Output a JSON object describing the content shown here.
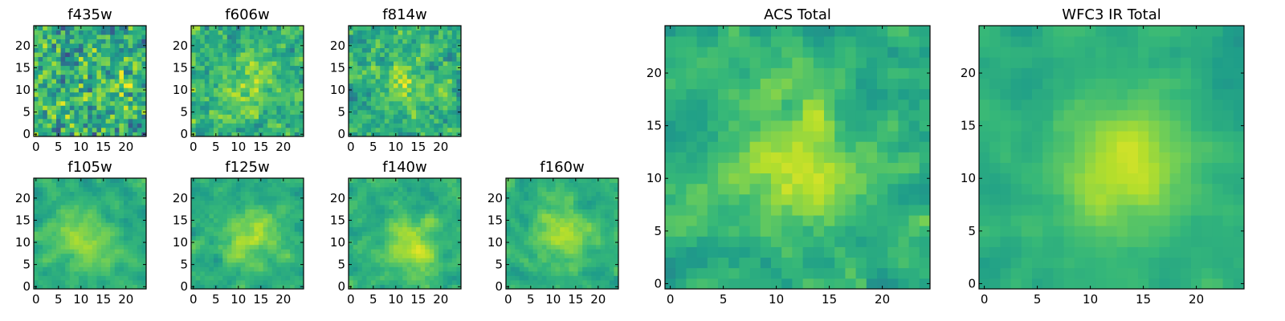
{
  "chart_data": [
    {
      "type": "heatmap",
      "title": "f435w",
      "x_ticks": [
        0,
        5,
        10,
        15,
        20
      ],
      "y_ticks": [
        0,
        5,
        10,
        15,
        20
      ],
      "xlim": [
        -0.5,
        24.5
      ],
      "ylim": [
        -0.5,
        24.5
      ],
      "grid_size": [
        25,
        25
      ],
      "colormap": "viridis",
      "value_range": [
        0,
        1
      ],
      "center": [
        12,
        11
      ],
      "center_peak": 0.1,
      "noise": 0.95
    },
    {
      "type": "heatmap",
      "title": "f606w",
      "x_ticks": [
        0,
        5,
        10,
        15,
        20
      ],
      "y_ticks": [
        0,
        5,
        10,
        15,
        20
      ],
      "xlim": [
        -0.5,
        24.5
      ],
      "ylim": [
        -0.5,
        24.5
      ],
      "grid_size": [
        25,
        25
      ],
      "colormap": "viridis",
      "value_range": [
        0,
        1
      ],
      "center": [
        13,
        11
      ],
      "center_peak": 0.3,
      "noise": 0.85
    },
    {
      "type": "heatmap",
      "title": "f814w",
      "x_ticks": [
        0,
        5,
        10,
        15,
        20
      ],
      "y_ticks": [
        0,
        5,
        10,
        15,
        20
      ],
      "xlim": [
        -0.5,
        24.5
      ],
      "ylim": [
        -0.5,
        24.5
      ],
      "grid_size": [
        25,
        25
      ],
      "colormap": "viridis",
      "value_range": [
        0,
        1
      ],
      "center": [
        12,
        11
      ],
      "center_peak": 0.35,
      "noise": 0.85
    },
    {
      "type": "heatmap",
      "title": "f105w",
      "x_ticks": [
        0,
        5,
        10,
        15,
        20
      ],
      "y_ticks": [
        0,
        5,
        10,
        15,
        20
      ],
      "xlim": [
        -0.5,
        24.5
      ],
      "ylim": [
        -0.5,
        24.5
      ],
      "grid_size": [
        25,
        25
      ],
      "colormap": "viridis",
      "value_range": [
        0,
        1
      ],
      "center": [
        11,
        11
      ],
      "center_peak": 0.45,
      "noise": 0.55
    },
    {
      "type": "heatmap",
      "title": "f125w",
      "x_ticks": [
        0,
        5,
        10,
        15,
        20
      ],
      "y_ticks": [
        0,
        5,
        10,
        15,
        20
      ],
      "xlim": [
        -0.5,
        24.5
      ],
      "ylim": [
        -0.5,
        24.5
      ],
      "grid_size": [
        25,
        25
      ],
      "colormap": "viridis",
      "value_range": [
        0,
        1
      ],
      "center": [
        13,
        11
      ],
      "center_peak": 0.4,
      "noise": 0.6
    },
    {
      "type": "heatmap",
      "title": "f140w",
      "x_ticks": [
        0,
        5,
        10,
        15,
        20
      ],
      "y_ticks": [
        0,
        5,
        10,
        15,
        20
      ],
      "xlim": [
        -0.5,
        24.5
      ],
      "ylim": [
        -0.5,
        24.5
      ],
      "grid_size": [
        25,
        25
      ],
      "colormap": "viridis",
      "value_range": [
        0,
        1
      ],
      "center": [
        13,
        9
      ],
      "center_peak": 0.45,
      "noise": 0.6
    },
    {
      "type": "heatmap",
      "title": "f160w",
      "x_ticks": [
        0,
        5,
        10,
        15,
        20
      ],
      "y_ticks": [
        0,
        5,
        10,
        15,
        20
      ],
      "xlim": [
        -0.5,
        24.5
      ],
      "ylim": [
        -0.5,
        24.5
      ],
      "grid_size": [
        25,
        25
      ],
      "colormap": "viridis",
      "value_range": [
        0,
        1
      ],
      "center": [
        12,
        12
      ],
      "center_peak": 0.45,
      "noise": 0.55
    },
    {
      "type": "heatmap",
      "title": "ACS Total",
      "x_ticks": [
        0,
        5,
        10,
        15,
        20
      ],
      "y_ticks": [
        0,
        5,
        10,
        15,
        20
      ],
      "xlim": [
        -0.5,
        24.5
      ],
      "ylim": [
        -0.5,
        24.5
      ],
      "grid_size": [
        25,
        25
      ],
      "colormap": "viridis",
      "value_range": [
        0,
        1
      ],
      "center": [
        12,
        11
      ],
      "center_peak": 0.45,
      "noise": 0.65
    },
    {
      "type": "heatmap",
      "title": "WFC3 IR Total",
      "x_ticks": [
        0,
        5,
        10,
        15,
        20
      ],
      "y_ticks": [
        0,
        5,
        10,
        15,
        20
      ],
      "xlim": [
        -0.5,
        24.5
      ],
      "ylim": [
        -0.5,
        24.5
      ],
      "grid_size": [
        25,
        25
      ],
      "colormap": "viridis",
      "value_range": [
        0,
        1
      ],
      "center": [
        13,
        11
      ],
      "center_peak": 0.5,
      "noise": 0.35
    }
  ]
}
